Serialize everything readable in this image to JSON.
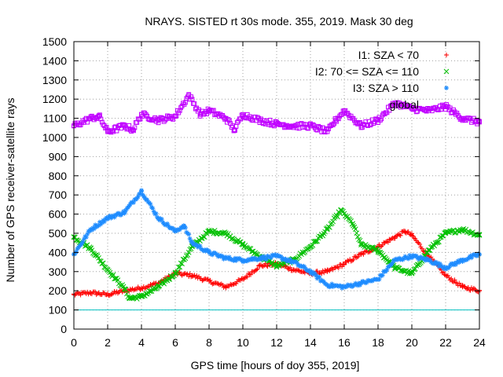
{
  "chart_data": {
    "type": "scatter",
    "title": "NRAYS. SISTED rt 30s mode. 355, 2019. Mask 30 deg",
    "xlabel": "GPS time [hours of doy 355, 2019]",
    "ylabel": "Number of GPS receiver-satellite rays",
    "xlim": [
      0,
      24
    ],
    "ylim": [
      0,
      1500
    ],
    "xticks": [
      0,
      2,
      4,
      6,
      8,
      10,
      12,
      14,
      16,
      18,
      20,
      22,
      24
    ],
    "yticks": [
      0,
      100,
      200,
      300,
      400,
      500,
      600,
      700,
      800,
      900,
      1000,
      1100,
      1200,
      1300,
      1400,
      1500
    ],
    "grid": true,
    "legend_position": "top-right",
    "reference_line": {
      "y": 100,
      "color": "#00c0c0"
    },
    "series": [
      {
        "name": "I1: SZA < 70",
        "marker": "+",
        "color": "#ff0000",
        "x": [
          0,
          1,
          2,
          3,
          4,
          5,
          6,
          7,
          8,
          9,
          10,
          11,
          12,
          13,
          14,
          15,
          16,
          17,
          18,
          19,
          19.6,
          20,
          21,
          22,
          23,
          24
        ],
        "y": [
          180,
          190,
          180,
          200,
          215,
          240,
          290,
          280,
          250,
          220,
          260,
          330,
          340,
          310,
          290,
          300,
          340,
          390,
          430,
          480,
          510,
          490,
          380,
          280,
          220,
          200
        ]
      },
      {
        "name": "I2: 70 <= SZA <= 110",
        "marker": "x",
        "color": "#00c000",
        "x": [
          0,
          1,
          2,
          3,
          3.3,
          4,
          5,
          6,
          7,
          8,
          9,
          10,
          11,
          12,
          13,
          14,
          15,
          15.8,
          16.5,
          17,
          18,
          19,
          20,
          21,
          22,
          23,
          24
        ],
        "y": [
          480,
          420,
          310,
          210,
          160,
          170,
          220,
          290,
          430,
          510,
          500,
          440,
          380,
          330,
          360,
          430,
          520,
          620,
          550,
          440,
          410,
          320,
          290,
          410,
          500,
          520,
          490
        ]
      },
      {
        "name": "I3: SZA > 110",
        "marker": "*",
        "color": "#1e8cff",
        "x": [
          0,
          1,
          2,
          3,
          4,
          5,
          6,
          6.5,
          7,
          8,
          9,
          10,
          11,
          12,
          13,
          14,
          15,
          16,
          17,
          18,
          19,
          20,
          21,
          22,
          23,
          24
        ],
        "y": [
          390,
          520,
          580,
          610,
          720,
          580,
          510,
          540,
          450,
          400,
          370,
          360,
          370,
          380,
          350,
          300,
          230,
          220,
          240,
          260,
          360,
          380,
          360,
          320,
          360,
          390
        ]
      },
      {
        "name": "global",
        "marker": "square",
        "color": "#c000ff",
        "x": [
          0,
          1,
          1.5,
          2,
          3,
          3.5,
          4,
          5,
          6,
          6.8,
          7.5,
          8,
          9,
          9.5,
          10,
          11,
          12,
          13,
          14,
          15,
          15.5,
          16,
          17,
          18,
          19,
          20,
          21,
          22,
          23,
          24
        ],
        "y": [
          1060,
          1100,
          1110,
          1030,
          1060,
          1040,
          1120,
          1090,
          1110,
          1220,
          1120,
          1140,
          1100,
          1040,
          1120,
          1090,
          1070,
          1060,
          1060,
          1030,
          1090,
          1140,
          1060,
          1090,
          1180,
          1150,
          1140,
          1160,
          1100,
          1080
        ]
      }
    ]
  }
}
